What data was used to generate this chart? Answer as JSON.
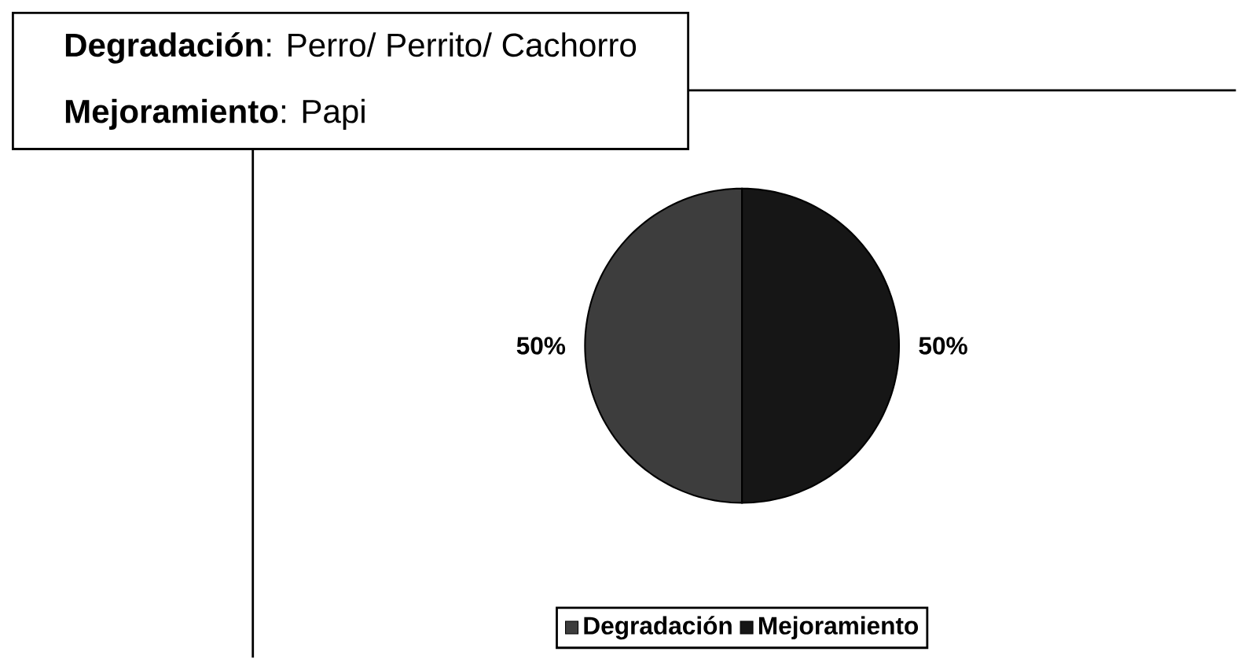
{
  "chart_data": {
    "type": "pie",
    "categories": [
      "Degradación",
      "Mejoramiento"
    ],
    "values": [
      50,
      50
    ],
    "colors": [
      "#3d3d3d",
      "#161616"
    ],
    "value_labels": [
      "50%",
      "50%"
    ],
    "legend": "bottom",
    "annotations": [
      "**Degradación**: Perro/ Perrito/ Cachorro",
      "**Mejoramiento**: Papi"
    ]
  }
}
